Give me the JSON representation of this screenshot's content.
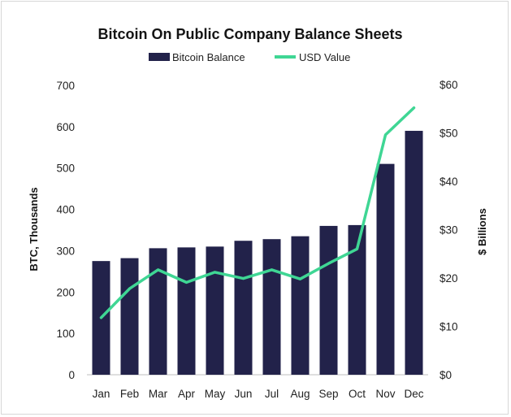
{
  "chart_data": {
    "type": "bar",
    "title": "Bitcoin On Public Company Balance Sheets",
    "categories": [
      "Jan",
      "Feb",
      "Mar",
      "Apr",
      "May",
      "Jun",
      "Jul",
      "Aug",
      "Sep",
      "Oct",
      "Nov",
      "Dec"
    ],
    "series": [
      {
        "name": "Bitcoin Balance",
        "kind": "bar",
        "axis": "left",
        "color": "#22224a",
        "values": [
          275,
          282,
          306,
          308,
          310,
          324,
          328,
          335,
          360,
          362,
          510,
          590
        ]
      },
      {
        "name": "USD Value",
        "kind": "line",
        "axis": "right",
        "color": "#3fd694",
        "values": [
          11.8,
          17.8,
          21.7,
          19.1,
          21.2,
          19.9,
          21.7,
          19.8,
          23.0,
          26.0,
          49.6,
          55.2
        ]
      }
    ],
    "ylabel": "BTC, Thousands",
    "ylim": [
      0,
      700
    ],
    "yticks": [
      "0",
      "100",
      "200",
      "300",
      "400",
      "500",
      "600",
      "700"
    ],
    "y2label": "$ Billions",
    "y2lim": [
      0,
      60
    ],
    "y2ticks": [
      "$0",
      "$10",
      "$20",
      "$30",
      "$40",
      "$50",
      "$60"
    ],
    "legend": "top-center",
    "grid": false
  }
}
